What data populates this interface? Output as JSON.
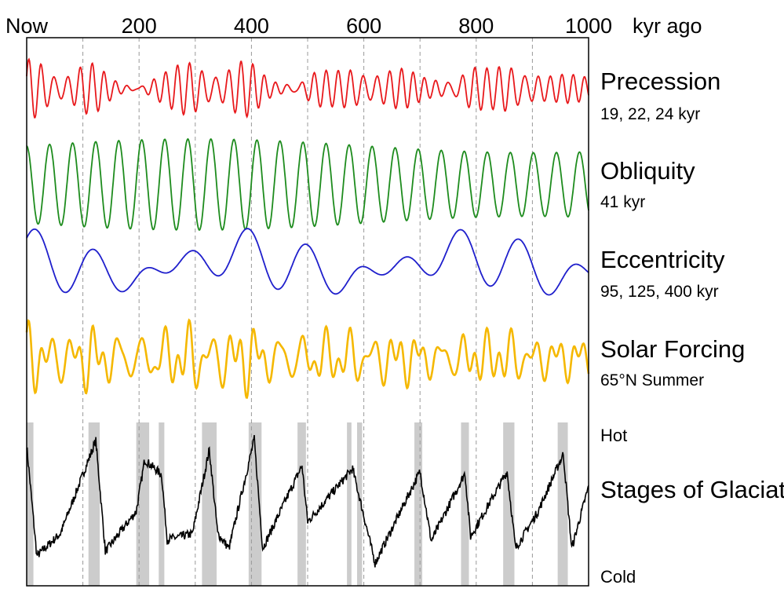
{
  "chart_data": {
    "type": "line",
    "title": "",
    "x_axis": {
      "unit_label": "kyr ago",
      "range": [
        0,
        1000
      ],
      "ticks": [
        {
          "value": 0,
          "label": "Now"
        },
        {
          "value": 200,
          "label": "200"
        },
        {
          "value": 400,
          "label": "400"
        },
        {
          "value": 600,
          "label": "600"
        },
        {
          "value": 800,
          "label": "800"
        },
        {
          "value": 1000,
          "label": "1000"
        }
      ],
      "gridlines": [
        100,
        200,
        300,
        400,
        500,
        600,
        700,
        800,
        900
      ],
      "grid_style": "dashed"
    },
    "series": [
      {
        "name": "Precession",
        "subtitle": "19, 22, 24 kyr",
        "color": "#e8191c",
        "periods_kyr": [
          19,
          22,
          24
        ],
        "y_range": [
          -1,
          1
        ]
      },
      {
        "name": "Obliquity",
        "subtitle": "41 kyr",
        "color": "#1e8c1e",
        "periods_kyr": [
          41
        ],
        "y_range": [
          -1,
          1
        ]
      },
      {
        "name": "Eccentricity",
        "subtitle": "95, 125, 400 kyr",
        "color": "#1f1fcc",
        "periods_kyr": [
          95,
          125,
          400
        ],
        "y_range": [
          -1,
          1
        ]
      },
      {
        "name": "Solar Forcing",
        "subtitle": "65°N Summer",
        "color": "#f5b800",
        "y_range": [
          -1,
          1
        ]
      },
      {
        "name": "Stages of Glaciation",
        "subtitle": "",
        "color": "#000000",
        "top_label": "Hot",
        "bottom_label": "Cold",
        "y_range": [
          0,
          1
        ],
        "peaks": [
          [
            0,
            0.9
          ],
          [
            123,
            0.93
          ],
          [
            210,
            0.8
          ],
          [
            240,
            0.7
          ],
          [
            325,
            0.87
          ],
          [
            405,
            0.94
          ],
          [
            490,
            0.76
          ],
          [
            580,
            0.74
          ],
          [
            700,
            0.72
          ],
          [
            780,
            0.71
          ],
          [
            855,
            0.72
          ],
          [
            955,
            0.84
          ]
        ],
        "minima": [
          [
            18,
            0.15
          ],
          [
            60,
            0.3
          ],
          [
            140,
            0.18
          ],
          [
            195,
            0.45
          ],
          [
            250,
            0.26
          ],
          [
            295,
            0.3
          ],
          [
            340,
            0.3
          ],
          [
            360,
            0.2
          ],
          [
            420,
            0.2
          ],
          [
            500,
            0.38
          ],
          [
            620,
            0.1
          ],
          [
            720,
            0.25
          ],
          [
            790,
            0.28
          ],
          [
            870,
            0.2
          ],
          [
            910,
            0.45
          ],
          [
            970,
            0.2
          ]
        ],
        "interglacial_bands_kyr": [
          [
            0,
            12
          ],
          [
            110,
            130
          ],
          [
            195,
            218
          ],
          [
            235,
            245
          ],
          [
            312,
            338
          ],
          [
            395,
            418
          ],
          [
            482,
            497
          ],
          [
            570,
            578
          ],
          [
            588,
            597
          ],
          [
            690,
            704
          ],
          [
            773,
            787
          ],
          [
            848,
            868
          ],
          [
            945,
            963
          ]
        ]
      }
    ]
  }
}
